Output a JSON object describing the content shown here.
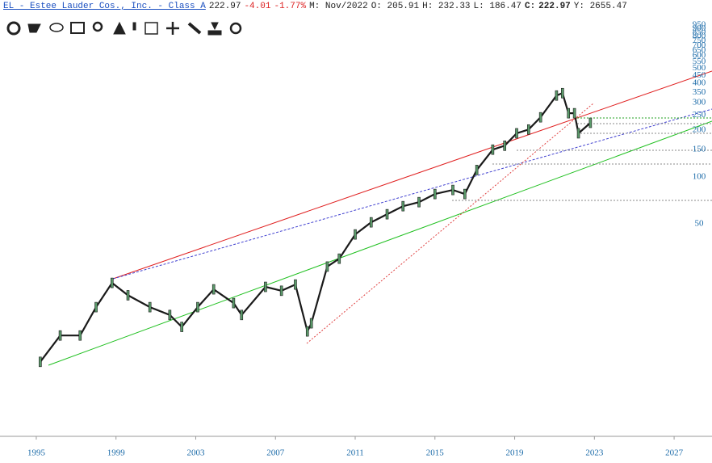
{
  "header": {
    "symbol": "EL - Estee Lauder Cos., Inc. - Class A",
    "last": "222.97",
    "change": "-4.01",
    "change_pct": "-1.77%",
    "month": "M: Nov/2022",
    "open": "O: 205.91",
    "high": "H: 232.33",
    "low": "L: 186.47",
    "close_label": "C:",
    "close": "222.97",
    "y": "Y: 2655.47"
  },
  "chart_data": {
    "type": "line",
    "log_scale": true,
    "color": "#1a1a1a",
    "x": [
      1995.2,
      1996.2,
      1997.2,
      1998.0,
      1998.8,
      1999.6,
      2000.7,
      2001.7,
      2002.3,
      2003.1,
      2003.9,
      2004.9,
      2005.3,
      2006.5,
      2007.3,
      2008.0,
      2008.6,
      2008.8,
      2009.6,
      2010.2,
      2011.0,
      2011.8,
      2012.6,
      2013.4,
      2014.2,
      2015.0,
      2015.9,
      2016.5,
      2017.1,
      2017.9,
      2018.5,
      2019.1,
      2019.7,
      2020.3,
      2021.1,
      2021.4,
      2021.7,
      2022.0,
      2022.2,
      2022.8
    ],
    "values": [
      6.5,
      9.6,
      9.6,
      14.6,
      20.9,
      17.4,
      14.6,
      13.0,
      10.9,
      14.6,
      19.0,
      15.5,
      13.0,
      19.7,
      18.6,
      20.4,
      10.2,
      11.5,
      26.6,
      29.9,
      42.8,
      51.2,
      57.7,
      65,
      69,
      77.8,
      82.6,
      77.8,
      111,
      150,
      159,
      191,
      202,
      242,
      334,
      346,
      257,
      257,
      191,
      222.97
    ],
    "xlim": [
      1993.18,
      2028.9
    ],
    "xticks": [
      1995,
      1999,
      2003,
      2007,
      2011,
      2015,
      2019,
      2023,
      2027
    ],
    "ylim": [
      2.16,
      1080
    ],
    "yticks": [
      50,
      100,
      150,
      200,
      250,
      300,
      350,
      400,
      450,
      500,
      550,
      600,
      650,
      700,
      750,
      800,
      850,
      900,
      950
    ]
  }
}
